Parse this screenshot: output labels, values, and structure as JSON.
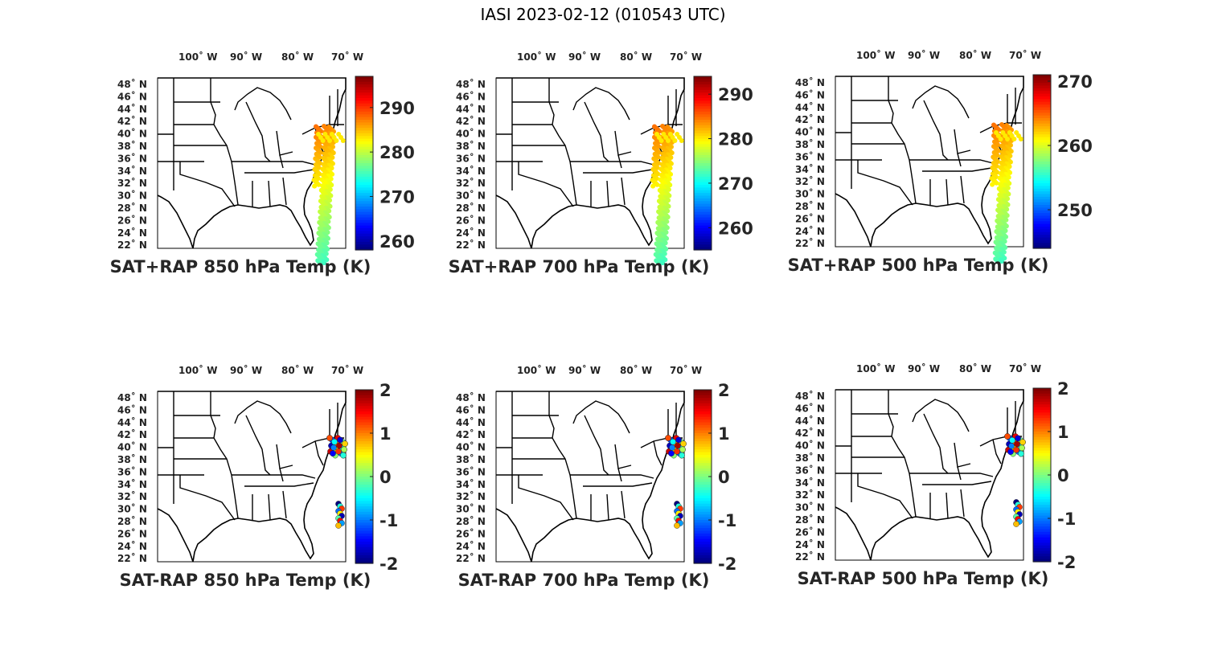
{
  "figure": {
    "title": "IASI 2023-02-12 (010543 UTC)"
  },
  "map_labels": {
    "lon": [
      "100˚ W",
      "90˚ W",
      "80˚ W",
      "70˚ W"
    ],
    "lat": [
      "48˚ N",
      "46˚ N",
      "44˚ N",
      "42˚ N",
      "40˚ N",
      "38˚ N",
      "36˚ N",
      "34˚ N",
      "32˚ N",
      "30˚ N",
      "28˚ N",
      "26˚ N",
      "24˚ N",
      "22˚ N"
    ]
  },
  "colormap": "jet",
  "panels": [
    {
      "caption": "SAT+RAP 850 hPa Temp (K)",
      "colorbar_ticks": [
        "290",
        "280",
        "270",
        "260"
      ],
      "range": [
        258,
        297
      ]
    },
    {
      "caption": "SAT+RAP 700 hPa Temp (K)",
      "colorbar_ticks": [
        "290",
        "280",
        "270",
        "260"
      ],
      "range": [
        255,
        294
      ]
    },
    {
      "caption": "SAT+RAP 500 hPa Temp (K)",
      "colorbar_ticks": [
        "270",
        "260",
        "250"
      ],
      "range": [
        244,
        271
      ]
    },
    {
      "caption": "SAT-RAP 850 hPa Temp (K)",
      "colorbar_ticks": [
        "2",
        "1",
        "0",
        "-1",
        "-2"
      ],
      "range": [
        -2,
        2
      ]
    },
    {
      "caption": "SAT-RAP 700 hPa Temp (K)",
      "colorbar_ticks": [
        "2",
        "1",
        "0",
        "-1",
        "-2"
      ],
      "range": [
        -2,
        2
      ]
    },
    {
      "caption": "SAT-RAP 500 hPa Temp (K)",
      "colorbar_ticks": [
        "2",
        "1",
        "0",
        "-1",
        "-2"
      ],
      "range": [
        -2,
        2
      ]
    }
  ]
}
